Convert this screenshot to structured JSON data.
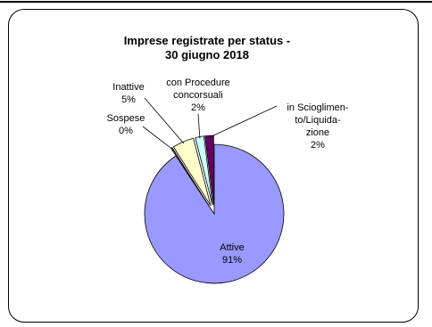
{
  "chart_data": {
    "type": "pie",
    "title": [
      "Imprese registrate per status -",
      "30 giugno 2018"
    ],
    "slices": [
      {
        "label": [
          "Attive",
          "91%"
        ],
        "value": 91,
        "color": "#9999ff"
      },
      {
        "label": [
          "Sospese",
          "0%"
        ],
        "value": 0.3,
        "color": "#993366"
      },
      {
        "label": [
          "Inattive",
          "5%"
        ],
        "value": 5,
        "color": "#ffffcc"
      },
      {
        "label": [
          "con Procedure",
          "concorsuali",
          "2%"
        ],
        "value": 2,
        "color": "#ccffff"
      },
      {
        "label": [
          "in Scioglimen-",
          "to/Liquida-",
          "zione",
          "2%"
        ],
        "value": 2,
        "color": "#660066"
      }
    ]
  }
}
